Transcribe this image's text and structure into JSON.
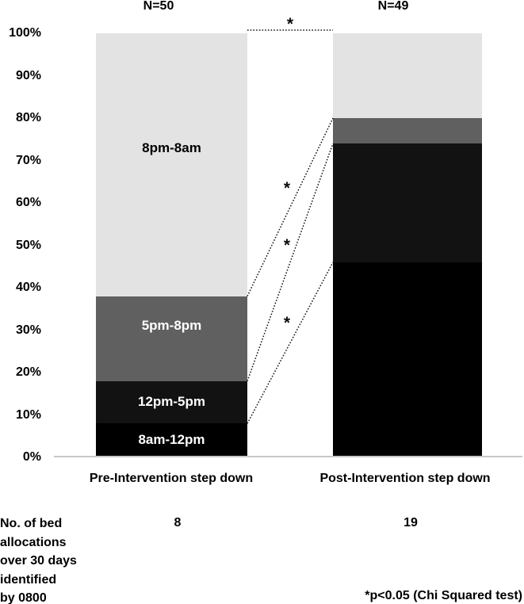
{
  "chart_data": {
    "type": "bar",
    "subtype": "100%-stacked-column",
    "title": "",
    "categories": [
      "Pre-Intervention step down",
      "Post-Intervention step down"
    ],
    "category_n_labels": [
      "N=50",
      "N=49"
    ],
    "series": [
      {
        "name": "8am-12pm",
        "values_pct": [
          8,
          46
        ],
        "color": "#000000",
        "label_color": "#ffffff"
      },
      {
        "name": "12pm-5pm",
        "values_pct": [
          10,
          28
        ],
        "color": "#121212",
        "label_color": "#ffffff"
      },
      {
        "name": "5pm-8pm",
        "values_pct": [
          20,
          6
        ],
        "color": "#606060",
        "label_color": "#ffffff"
      },
      {
        "name": "8pm-8am",
        "values_pct": [
          62,
          20
        ],
        "color": "#e3e3e3",
        "label_color": "#000000"
      }
    ],
    "segment_labels_shown_on": "first-bar-only",
    "y_axis": {
      "min": 0,
      "max": 100,
      "ticks": [
        "0%",
        "10%",
        "20%",
        "30%",
        "40%",
        "50%",
        "60%",
        "70%",
        "80%",
        "90%",
        "100%"
      ]
    },
    "gridlines": false,
    "legend": "none",
    "significance_connectors": [
      {
        "left_cumulative_pct": 100,
        "right_cumulative_pct": 100,
        "marker": "*"
      },
      {
        "left_cumulative_pct": 38,
        "right_cumulative_pct": 80,
        "marker": "*"
      },
      {
        "left_cumulative_pct": 18,
        "right_cumulative_pct": 74,
        "marker": "*"
      },
      {
        "left_cumulative_pct": 8,
        "right_cumulative_pct": 46,
        "marker": "*"
      }
    ],
    "connector_style": "dotted",
    "axis_line_color": "#c8c8c8"
  },
  "footer": {
    "row_header_lines": [
      "No. of bed",
      "allocations",
      "over 30 days",
      "identified",
      "by 0800"
    ],
    "values": [
      "8",
      "19"
    ],
    "note": "*p<0.05 (Chi Squared test)"
  }
}
